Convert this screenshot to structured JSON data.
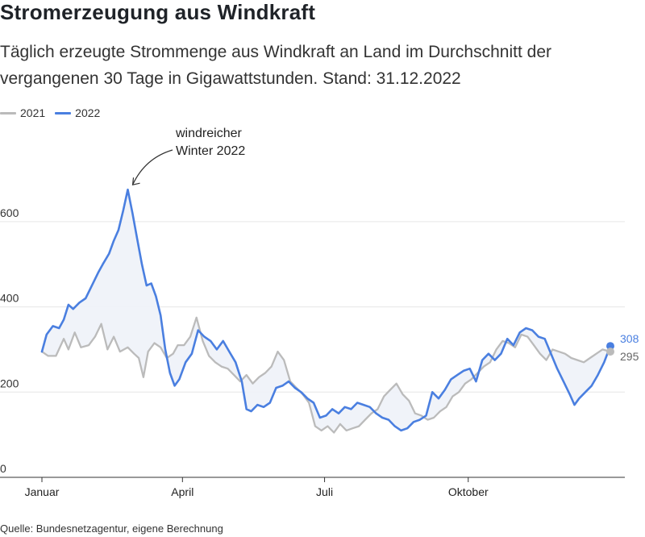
{
  "header": {
    "title": "Stromerzeugung aus Windkraft",
    "subtitle": "Täglich erzeugte Strommenge aus Windkraft an Land im Durchschnitt der vergangenen 30 Tage in Gigawattstunden. Stand: 31.12.2022"
  },
  "source": "Quelle: Bundesnetzagentur, eigene Berechnung",
  "chart_data": {
    "type": "line",
    "title": "Stromerzeugung aus Windkraft",
    "subtitle": "Täglich erzeugte Strommenge aus Windkraft an Land im Durchschnitt der vergangenen 30 Tage in Gigawattstunden. Stand: 31.12.2022",
    "xlabel": "",
    "ylabel": "",
    "ylim": [
      0,
      700
    ],
    "yticks": [
      0,
      200,
      400,
      600
    ],
    "xtick_labels": [
      {
        "label": "Januar",
        "date": "2022-01-01"
      },
      {
        "label": "April",
        "date": "2022-04-01"
      },
      {
        "label": "Juli",
        "date": "2022-07-01"
      },
      {
        "label": "Oktober",
        "date": "2022-10-01"
      }
    ],
    "grid": "horizontal",
    "legend_position": "top-left",
    "annotation": {
      "text": [
        "windreicher",
        "Winter 2022"
      ],
      "date": "2022-02-25",
      "value": 675
    },
    "end_labels": [
      {
        "series": "2022",
        "value": 308
      },
      {
        "series": "2021",
        "value": 295
      }
    ],
    "series": [
      {
        "name": "2021",
        "color": "#bbbbbb",
        "points": [
          [
            "2022-01-01",
            295
          ],
          [
            "2022-01-05",
            285
          ],
          [
            "2022-01-10",
            285
          ],
          [
            "2022-01-15",
            325
          ],
          [
            "2022-01-18",
            300
          ],
          [
            "2022-01-22",
            340
          ],
          [
            "2022-01-26",
            305
          ],
          [
            "2022-01-31",
            310
          ],
          [
            "2022-02-04",
            330
          ],
          [
            "2022-02-08",
            360
          ],
          [
            "2022-02-12",
            300
          ],
          [
            "2022-02-16",
            330
          ],
          [
            "2022-02-20",
            295
          ],
          [
            "2022-02-25",
            305
          ],
          [
            "2022-03-01",
            290
          ],
          [
            "2022-03-04",
            280
          ],
          [
            "2022-03-07",
            235
          ],
          [
            "2022-03-10",
            295
          ],
          [
            "2022-03-14",
            315
          ],
          [
            "2022-03-18",
            305
          ],
          [
            "2022-03-22",
            280
          ],
          [
            "2022-03-26",
            290
          ],
          [
            "2022-03-29",
            310
          ],
          [
            "2022-04-02",
            310
          ],
          [
            "2022-04-06",
            330
          ],
          [
            "2022-04-10",
            375
          ],
          [
            "2022-04-14",
            320
          ],
          [
            "2022-04-18",
            285
          ],
          [
            "2022-04-22",
            270
          ],
          [
            "2022-04-26",
            260
          ],
          [
            "2022-04-30",
            255
          ],
          [
            "2022-05-04",
            240
          ],
          [
            "2022-05-08",
            225
          ],
          [
            "2022-05-12",
            240
          ],
          [
            "2022-05-16",
            220
          ],
          [
            "2022-05-20",
            235
          ],
          [
            "2022-05-24",
            245
          ],
          [
            "2022-05-28",
            260
          ],
          [
            "2022-06-01",
            295
          ],
          [
            "2022-06-05",
            275
          ],
          [
            "2022-06-09",
            225
          ],
          [
            "2022-06-13",
            210
          ],
          [
            "2022-06-17",
            195
          ],
          [
            "2022-06-21",
            175
          ],
          [
            "2022-06-25",
            120
          ],
          [
            "2022-06-29",
            110
          ],
          [
            "2022-07-03",
            120
          ],
          [
            "2022-07-07",
            105
          ],
          [
            "2022-07-11",
            125
          ],
          [
            "2022-07-15",
            110
          ],
          [
            "2022-07-19",
            115
          ],
          [
            "2022-07-23",
            120
          ],
          [
            "2022-07-27",
            135
          ],
          [
            "2022-07-31",
            150
          ],
          [
            "2022-08-04",
            160
          ],
          [
            "2022-08-08",
            190
          ],
          [
            "2022-08-12",
            205
          ],
          [
            "2022-08-16",
            220
          ],
          [
            "2022-08-20",
            195
          ],
          [
            "2022-08-24",
            180
          ],
          [
            "2022-08-28",
            150
          ],
          [
            "2022-09-01",
            145
          ],
          [
            "2022-09-05",
            135
          ],
          [
            "2022-09-09",
            140
          ],
          [
            "2022-09-13",
            155
          ],
          [
            "2022-09-17",
            165
          ],
          [
            "2022-09-21",
            190
          ],
          [
            "2022-09-25",
            200
          ],
          [
            "2022-09-29",
            220
          ],
          [
            "2022-10-03",
            230
          ],
          [
            "2022-10-07",
            245
          ],
          [
            "2022-10-11",
            260
          ],
          [
            "2022-10-15",
            270
          ],
          [
            "2022-10-19",
            300
          ],
          [
            "2022-10-23",
            320
          ],
          [
            "2022-10-27",
            315
          ],
          [
            "2022-10-31",
            305
          ],
          [
            "2022-11-04",
            335
          ],
          [
            "2022-11-08",
            330
          ],
          [
            "2022-11-12",
            310
          ],
          [
            "2022-11-16",
            290
          ],
          [
            "2022-11-20",
            275
          ],
          [
            "2022-11-24",
            300
          ],
          [
            "2022-11-28",
            295
          ],
          [
            "2022-12-02",
            290
          ],
          [
            "2022-12-06",
            280
          ],
          [
            "2022-12-10",
            275
          ],
          [
            "2022-12-14",
            270
          ],
          [
            "2022-12-18",
            280
          ],
          [
            "2022-12-22",
            290
          ],
          [
            "2022-12-26",
            300
          ],
          [
            "2022-12-31",
            295
          ]
        ]
      },
      {
        "name": "2022",
        "color": "#4a7fe0",
        "points": [
          [
            "2022-01-01",
            295
          ],
          [
            "2022-01-04",
            335
          ],
          [
            "2022-01-08",
            355
          ],
          [
            "2022-01-12",
            350
          ],
          [
            "2022-01-15",
            370
          ],
          [
            "2022-01-18",
            405
          ],
          [
            "2022-01-21",
            395
          ],
          [
            "2022-01-25",
            410
          ],
          [
            "2022-01-29",
            420
          ],
          [
            "2022-02-02",
            450
          ],
          [
            "2022-02-06",
            480
          ],
          [
            "2022-02-09",
            500
          ],
          [
            "2022-02-13",
            525
          ],
          [
            "2022-02-16,",
            555
          ],
          [
            "2022-02-19",
            580
          ],
          [
            "2022-02-22",
            625
          ],
          [
            "2022-02-25",
            675
          ],
          [
            "2022-02-28",
            620
          ],
          [
            "2022-03-03",
            560
          ],
          [
            "2022-03-06",
            500
          ],
          [
            "2022-03-09",
            450
          ],
          [
            "2022-03-12",
            455
          ],
          [
            "2022-03-15",
            425
          ],
          [
            "2022-03-18",
            380
          ],
          [
            "2022-03-21",
            300
          ],
          [
            "2022-03-24",
            245
          ],
          [
            "2022-03-27",
            215
          ],
          [
            "2022-03-30",
            230
          ],
          [
            "2022-04-03",
            270
          ],
          [
            "2022-04-07",
            290
          ],
          [
            "2022-04-11",
            345
          ],
          [
            "2022-04-15",
            330
          ],
          [
            "2022-04-19",
            320
          ],
          [
            "2022-04-23",
            300
          ],
          [
            "2022-04-27",
            320
          ],
          [
            "2022-05-01",
            295
          ],
          [
            "2022-05-05",
            270
          ],
          [
            "2022-05-09",
            225
          ],
          [
            "2022-05-12",
            160
          ],
          [
            "2022-05-15",
            155
          ],
          [
            "2022-05-19",
            170
          ],
          [
            "2022-05-23",
            165
          ],
          [
            "2022-05-27",
            175
          ],
          [
            "2022-05-31",
            210
          ],
          [
            "2022-06-04",
            215
          ],
          [
            "2022-06-08",
            225
          ],
          [
            "2022-06-12",
            210
          ],
          [
            "2022-06-16",
            200
          ],
          [
            "2022-06-20",
            185
          ],
          [
            "2022-06-24",
            175
          ],
          [
            "2022-06-28",
            140
          ],
          [
            "2022-07-02",
            145
          ],
          [
            "2022-07-06",
            160
          ],
          [
            "2022-07-10",
            150
          ],
          [
            "2022-07-14",
            165
          ],
          [
            "2022-07-18",
            160
          ],
          [
            "2022-07-22",
            175
          ],
          [
            "2022-07-26",
            170
          ],
          [
            "2022-07-30",
            165
          ],
          [
            "2022-08-03",
            150
          ],
          [
            "2022-08-07",
            140
          ],
          [
            "2022-08-11",
            135
          ],
          [
            "2022-08-15",
            120
          ],
          [
            "2022-08-19",
            110
          ],
          [
            "2022-08-23",
            115
          ],
          [
            "2022-08-27",
            130
          ],
          [
            "2022-08-31",
            135
          ],
          [
            "2022-09-04",
            145
          ],
          [
            "2022-09-08",
            200
          ],
          [
            "2022-09-12",
            185
          ],
          [
            "2022-09-16",
            205
          ],
          [
            "2022-09-20",
            230
          ],
          [
            "2022-09-24",
            240
          ],
          [
            "2022-09-28",
            250
          ],
          [
            "2022-10-02",
            255
          ],
          [
            "2022-10-06",
            225
          ],
          [
            "2022-10-10",
            275
          ],
          [
            "2022-10-14",
            290
          ],
          [
            "2022-10-18",
            275
          ],
          [
            "2022-10-22",
            290
          ],
          [
            "2022-10-26",
            325
          ],
          [
            "2022-10-30",
            310
          ],
          [
            "2022-11-03",
            340
          ],
          [
            "2022-11-07",
            350
          ],
          [
            "2022-11-11",
            345
          ],
          [
            "2022-11-15",
            330
          ],
          [
            "2022-11-19",
            325
          ],
          [
            "2022-11-23",
            290
          ],
          [
            "2022-11-27",
            255
          ],
          [
            "2022-12-01",
            225
          ],
          [
            "2022-12-05",
            195
          ],
          [
            "2022-12-08",
            170
          ],
          [
            "2022-12-11",
            185
          ],
          [
            "2022-12-15",
            200
          ],
          [
            "2022-12-19",
            215
          ],
          [
            "2022-12-23",
            240
          ],
          [
            "2022-12-27",
            270
          ],
          [
            "2022-12-31",
            308
          ]
        ]
      }
    ]
  }
}
